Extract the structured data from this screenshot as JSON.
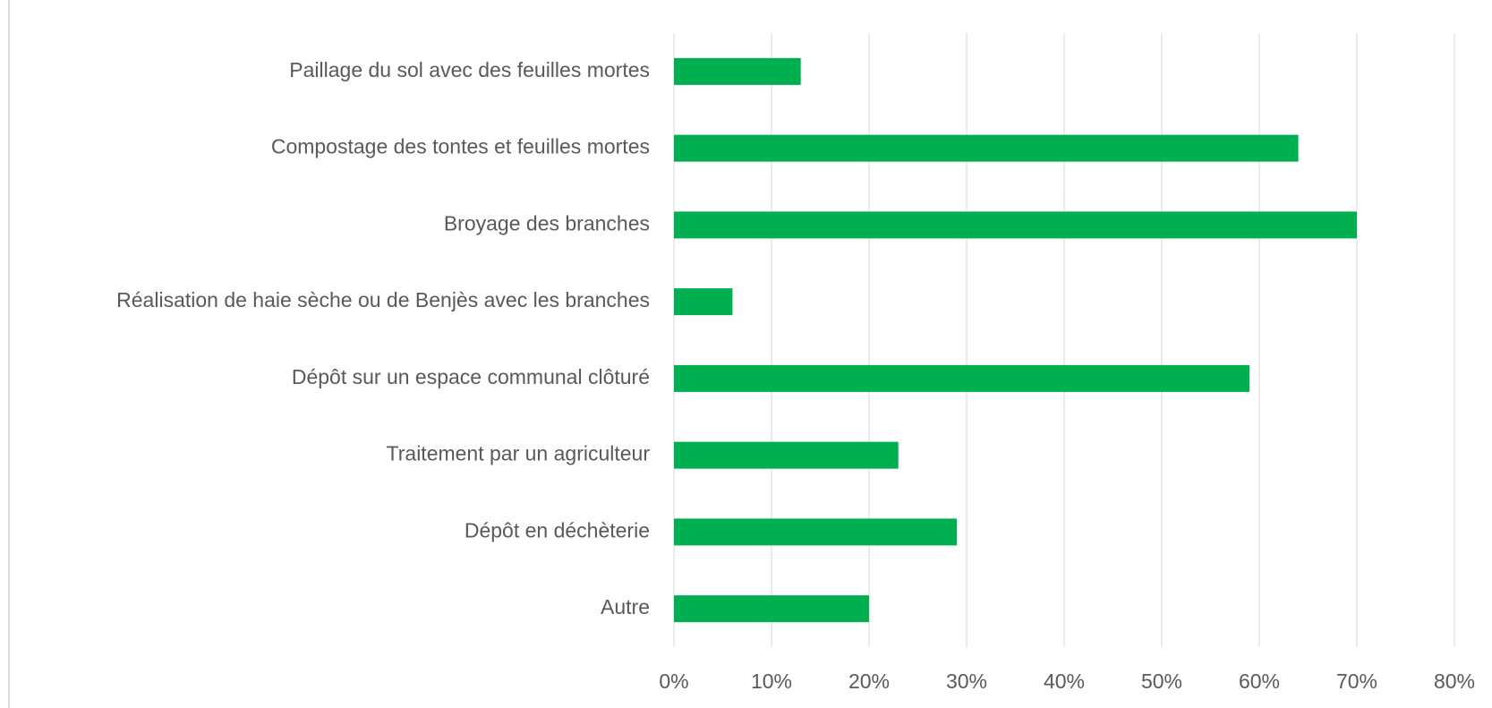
{
  "chart_data": {
    "type": "bar",
    "orientation": "horizontal",
    "categories": [
      "Paillage du sol avec des feuilles mortes",
      "Compostage des tontes et feuilles mortes",
      "Broyage des branches",
      "Réalisation de haie sèche ou de Benjès avec les branches",
      "Dépôt sur un espace communal clôturé",
      "Traitement par un agriculteur",
      "Dépôt en déchèterie",
      "Autre"
    ],
    "values": [
      13,
      64,
      70,
      6,
      59,
      23,
      29,
      20
    ],
    "color": "#00b050",
    "xlim": [
      0,
      80
    ],
    "xticks": [
      {
        "value": 0,
        "label": "0%"
      },
      {
        "value": 10,
        "label": "10%"
      },
      {
        "value": 20,
        "label": "20%"
      },
      {
        "value": 30,
        "label": "30%"
      },
      {
        "value": 40,
        "label": "40%"
      },
      {
        "value": 50,
        "label": "50%"
      },
      {
        "value": 60,
        "label": "60%"
      },
      {
        "value": 70,
        "label": "70%"
      },
      {
        "value": 80,
        "label": "80%"
      }
    ],
    "grid": true
  }
}
